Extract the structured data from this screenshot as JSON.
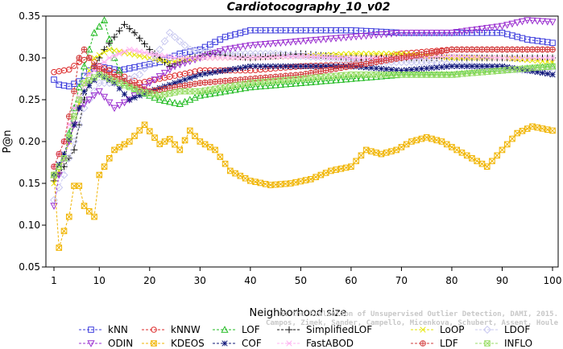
{
  "chart_data": {
    "type": "line",
    "title": "Cardiotocography_10_v02",
    "xlabel": "Neighborhood size",
    "ylabel": "P@n",
    "xlim": [
      1,
      100
    ],
    "ylim": [
      0.05,
      0.35
    ],
    "xticks": [
      1,
      10,
      20,
      30,
      40,
      50,
      60,
      70,
      80,
      90,
      100
    ],
    "yticks": [
      0.05,
      0.1,
      0.15,
      0.2,
      0.25,
      0.3,
      0.35
    ],
    "ytick_labels": [
      "0.05",
      "0.10",
      "0.15",
      "0.20",
      "0.25",
      "0.30",
      "0.35"
    ],
    "grid": false,
    "legend_position": "bottom",
    "credit_lines": [
      "Campos, Zimek, Sander, Campello, Micenkova, Schubert, Assent, Houle",
      "On the Evaluation of Unsupervised Outlier Detection, DAMI, 2015."
    ],
    "series": [
      {
        "name": "kNN",
        "color": "#3b3bdc",
        "marker": "square",
        "knots": [
          [
            1,
            0.274
          ],
          [
            2,
            0.268
          ],
          [
            4,
            0.266
          ],
          [
            6,
            0.272
          ],
          [
            8,
            0.285
          ],
          [
            10,
            0.29
          ],
          [
            14,
            0.285
          ],
          [
            18,
            0.29
          ],
          [
            22,
            0.295
          ],
          [
            26,
            0.305
          ],
          [
            30,
            0.31
          ],
          [
            35,
            0.325
          ],
          [
            40,
            0.333
          ],
          [
            50,
            0.333
          ],
          [
            60,
            0.333
          ],
          [
            70,
            0.33
          ],
          [
            80,
            0.33
          ],
          [
            90,
            0.33
          ],
          [
            95,
            0.322
          ],
          [
            100,
            0.318
          ]
        ]
      },
      {
        "name": "kNNW",
        "color": "#dc2a2a",
        "marker": "circle",
        "knots": [
          [
            1,
            0.283
          ],
          [
            4,
            0.286
          ],
          [
            6,
            0.295
          ],
          [
            8,
            0.3
          ],
          [
            10,
            0.29
          ],
          [
            14,
            0.28
          ],
          [
            18,
            0.27
          ],
          [
            22,
            0.275
          ],
          [
            26,
            0.28
          ],
          [
            30,
            0.285
          ],
          [
            40,
            0.285
          ],
          [
            50,
            0.29
          ],
          [
            60,
            0.292
          ],
          [
            70,
            0.305
          ],
          [
            80,
            0.31
          ],
          [
            90,
            0.31
          ],
          [
            100,
            0.31
          ]
        ]
      },
      {
        "name": "LOF",
        "color": "#22bb22",
        "marker": "triangle",
        "knots": [
          [
            1,
            0.16
          ],
          [
            3,
            0.18
          ],
          [
            5,
            0.24
          ],
          [
            7,
            0.29
          ],
          [
            9,
            0.33
          ],
          [
            11,
            0.345
          ],
          [
            13,
            0.3
          ],
          [
            15,
            0.27
          ],
          [
            18,
            0.26
          ],
          [
            22,
            0.25
          ],
          [
            26,
            0.245
          ],
          [
            30,
            0.255
          ],
          [
            40,
            0.265
          ],
          [
            50,
            0.27
          ],
          [
            60,
            0.275
          ],
          [
            70,
            0.28
          ],
          [
            80,
            0.28
          ],
          [
            90,
            0.285
          ],
          [
            100,
            0.29
          ]
        ]
      },
      {
        "name": "SimplifiedLOF",
        "color": "#111111",
        "marker": "plus",
        "knots": [
          [
            1,
            0.153
          ],
          [
            3,
            0.17
          ],
          [
            5,
            0.19
          ],
          [
            7,
            0.25
          ],
          [
            9,
            0.29
          ],
          [
            11,
            0.31
          ],
          [
            13,
            0.325
          ],
          [
            15,
            0.34
          ],
          [
            17,
            0.33
          ],
          [
            20,
            0.31
          ],
          [
            24,
            0.29
          ],
          [
            28,
            0.3
          ],
          [
            32,
            0.305
          ],
          [
            40,
            0.3
          ],
          [
            50,
            0.305
          ],
          [
            60,
            0.3
          ],
          [
            70,
            0.3
          ],
          [
            80,
            0.3
          ],
          [
            90,
            0.3
          ],
          [
            100,
            0.3
          ]
        ]
      },
      {
        "name": "LoOP",
        "color": "#e6e600",
        "marker": "x",
        "knots": [
          [
            1,
            0.15
          ],
          [
            3,
            0.18
          ],
          [
            5,
            0.22
          ],
          [
            7,
            0.27
          ],
          [
            9,
            0.3
          ],
          [
            12,
            0.31
          ],
          [
            16,
            0.305
          ],
          [
            20,
            0.3
          ],
          [
            24,
            0.295
          ],
          [
            30,
            0.3
          ],
          [
            40,
            0.3
          ],
          [
            50,
            0.302
          ],
          [
            60,
            0.305
          ],
          [
            70,
            0.305
          ],
          [
            80,
            0.3
          ],
          [
            90,
            0.3
          ],
          [
            100,
            0.295
          ]
        ]
      },
      {
        "name": "LDOF",
        "color": "#c8c8f0",
        "marker": "diamond",
        "knots": [
          [
            1,
            0.13
          ],
          [
            3,
            0.16
          ],
          [
            5,
            0.2
          ],
          [
            7,
            0.24
          ],
          [
            10,
            0.27
          ],
          [
            14,
            0.27
          ],
          [
            18,
            0.28
          ],
          [
            22,
            0.31
          ],
          [
            24,
            0.33
          ],
          [
            28,
            0.31
          ],
          [
            35,
            0.305
          ],
          [
            45,
            0.305
          ],
          [
            55,
            0.3
          ],
          [
            65,
            0.295
          ],
          [
            75,
            0.295
          ],
          [
            85,
            0.29
          ],
          [
            95,
            0.285
          ],
          [
            100,
            0.285
          ]
        ]
      },
      {
        "name": "ODIN",
        "color": "#9b30d0",
        "marker": "triangle-down",
        "knots": [
          [
            1,
            0.123
          ],
          [
            2,
            0.16
          ],
          [
            4,
            0.2
          ],
          [
            6,
            0.24
          ],
          [
            10,
            0.26
          ],
          [
            13,
            0.24
          ],
          [
            16,
            0.25
          ],
          [
            20,
            0.27
          ],
          [
            25,
            0.29
          ],
          [
            30,
            0.3
          ],
          [
            35,
            0.31
          ],
          [
            40,
            0.315
          ],
          [
            50,
            0.32
          ],
          [
            60,
            0.325
          ],
          [
            70,
            0.33
          ],
          [
            80,
            0.33
          ],
          [
            90,
            0.338
          ],
          [
            95,
            0.345
          ],
          [
            100,
            0.343
          ]
        ]
      },
      {
        "name": "KDEOS",
        "color": "#f0b400",
        "marker": "square-x",
        "knots": [
          [
            1,
            0.16
          ],
          [
            2,
            0.073
          ],
          [
            3,
            0.093
          ],
          [
            4,
            0.11
          ],
          [
            5,
            0.147
          ],
          [
            6,
            0.147
          ],
          [
            7,
            0.123
          ],
          [
            9,
            0.11
          ],
          [
            10,
            0.16
          ],
          [
            13,
            0.19
          ],
          [
            16,
            0.2
          ],
          [
            19,
            0.22
          ],
          [
            22,
            0.197
          ],
          [
            24,
            0.203
          ],
          [
            26,
            0.19
          ],
          [
            28,
            0.213
          ],
          [
            30,
            0.2
          ],
          [
            33,
            0.19
          ],
          [
            36,
            0.165
          ],
          [
            40,
            0.153
          ],
          [
            44,
            0.148
          ],
          [
            48,
            0.15
          ],
          [
            52,
            0.155
          ],
          [
            56,
            0.165
          ],
          [
            60,
            0.17
          ],
          [
            63,
            0.19
          ],
          [
            66,
            0.185
          ],
          [
            69,
            0.19
          ],
          [
            72,
            0.2
          ],
          [
            75,
            0.205
          ],
          [
            78,
            0.2
          ],
          [
            81,
            0.19
          ],
          [
            84,
            0.18
          ],
          [
            87,
            0.17
          ],
          [
            90,
            0.19
          ],
          [
            93,
            0.21
          ],
          [
            96,
            0.218
          ],
          [
            100,
            0.213
          ]
        ]
      },
      {
        "name": "COF",
        "color": "#10187a",
        "marker": "asterisk",
        "knots": [
          [
            1,
            0.16
          ],
          [
            3,
            0.185
          ],
          [
            5,
            0.22
          ],
          [
            7,
            0.26
          ],
          [
            10,
            0.28
          ],
          [
            13,
            0.27
          ],
          [
            16,
            0.25
          ],
          [
            20,
            0.26
          ],
          [
            25,
            0.27
          ],
          [
            30,
            0.28
          ],
          [
            35,
            0.285
          ],
          [
            40,
            0.29
          ],
          [
            50,
            0.29
          ],
          [
            60,
            0.29
          ],
          [
            70,
            0.285
          ],
          [
            80,
            0.29
          ],
          [
            90,
            0.29
          ],
          [
            100,
            0.28
          ]
        ]
      },
      {
        "name": "FastABOD",
        "color": "#ffb0f0",
        "marker": "star",
        "knots": [
          [
            1,
            0.17
          ],
          [
            3,
            0.2
          ],
          [
            5,
            0.24
          ],
          [
            8,
            0.28
          ],
          [
            12,
            0.3
          ],
          [
            16,
            0.31
          ],
          [
            20,
            0.305
          ],
          [
            25,
            0.3
          ],
          [
            30,
            0.3
          ],
          [
            40,
            0.3
          ],
          [
            50,
            0.302
          ],
          [
            60,
            0.3
          ],
          [
            70,
            0.3
          ],
          [
            80,
            0.302
          ],
          [
            90,
            0.3
          ],
          [
            100,
            0.3
          ]
        ]
      },
      {
        "name": "LDF",
        "color": "#d23c3c",
        "marker": "circle-plus",
        "knots": [
          [
            1,
            0.17
          ],
          [
            3,
            0.2
          ],
          [
            5,
            0.26
          ],
          [
            6,
            0.3
          ],
          [
            7,
            0.31
          ],
          [
            9,
            0.29
          ],
          [
            12,
            0.28
          ],
          [
            16,
            0.27
          ],
          [
            20,
            0.26
          ],
          [
            25,
            0.265
          ],
          [
            30,
            0.27
          ],
          [
            40,
            0.275
          ],
          [
            50,
            0.28
          ],
          [
            60,
            0.29
          ],
          [
            70,
            0.3
          ],
          [
            80,
            0.31
          ],
          [
            90,
            0.31
          ],
          [
            100,
            0.31
          ]
        ]
      },
      {
        "name": "INFLO",
        "color": "#99dd66",
        "marker": "square-x",
        "knots": [
          [
            1,
            0.16
          ],
          [
            3,
            0.18
          ],
          [
            5,
            0.23
          ],
          [
            7,
            0.27
          ],
          [
            10,
            0.28
          ],
          [
            14,
            0.27
          ],
          [
            18,
            0.26
          ],
          [
            22,
            0.255
          ],
          [
            26,
            0.26
          ],
          [
            30,
            0.26
          ],
          [
            40,
            0.27
          ],
          [
            50,
            0.275
          ],
          [
            60,
            0.28
          ],
          [
            70,
            0.28
          ],
          [
            80,
            0.28
          ],
          [
            90,
            0.285
          ],
          [
            100,
            0.29
          ]
        ]
      }
    ]
  }
}
